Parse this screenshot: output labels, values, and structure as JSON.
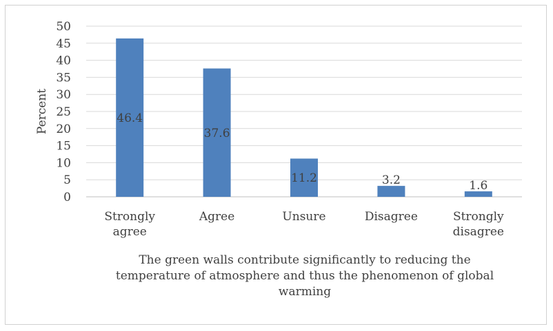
{
  "chart_data": {
    "type": "bar",
    "categories": [
      [
        "Strongly",
        "agree"
      ],
      [
        "Agree"
      ],
      [
        "Unsure"
      ],
      [
        "Disagree"
      ],
      [
        "Strongly",
        "disagree"
      ]
    ],
    "values": [
      46.4,
      37.6,
      11.2,
      3.2,
      1.6
    ],
    "data_labels": [
      "46.4",
      "37.6",
      "11.2",
      "3.2",
      "1.6"
    ],
    "ylabel": "Percent",
    "xlabel": [
      "The green walls contribute significantly to reducing the",
      "temperature of atmosphere and thus the phenomenon of global",
      "warming"
    ],
    "ylim": [
      0,
      50
    ],
    "yticks": [
      0,
      5,
      10,
      15,
      20,
      25,
      30,
      35,
      40,
      45,
      50
    ],
    "grid": true,
    "legend": "none",
    "bar_color": "#4f81bd",
    "grid_color": "#d9d9d9"
  }
}
